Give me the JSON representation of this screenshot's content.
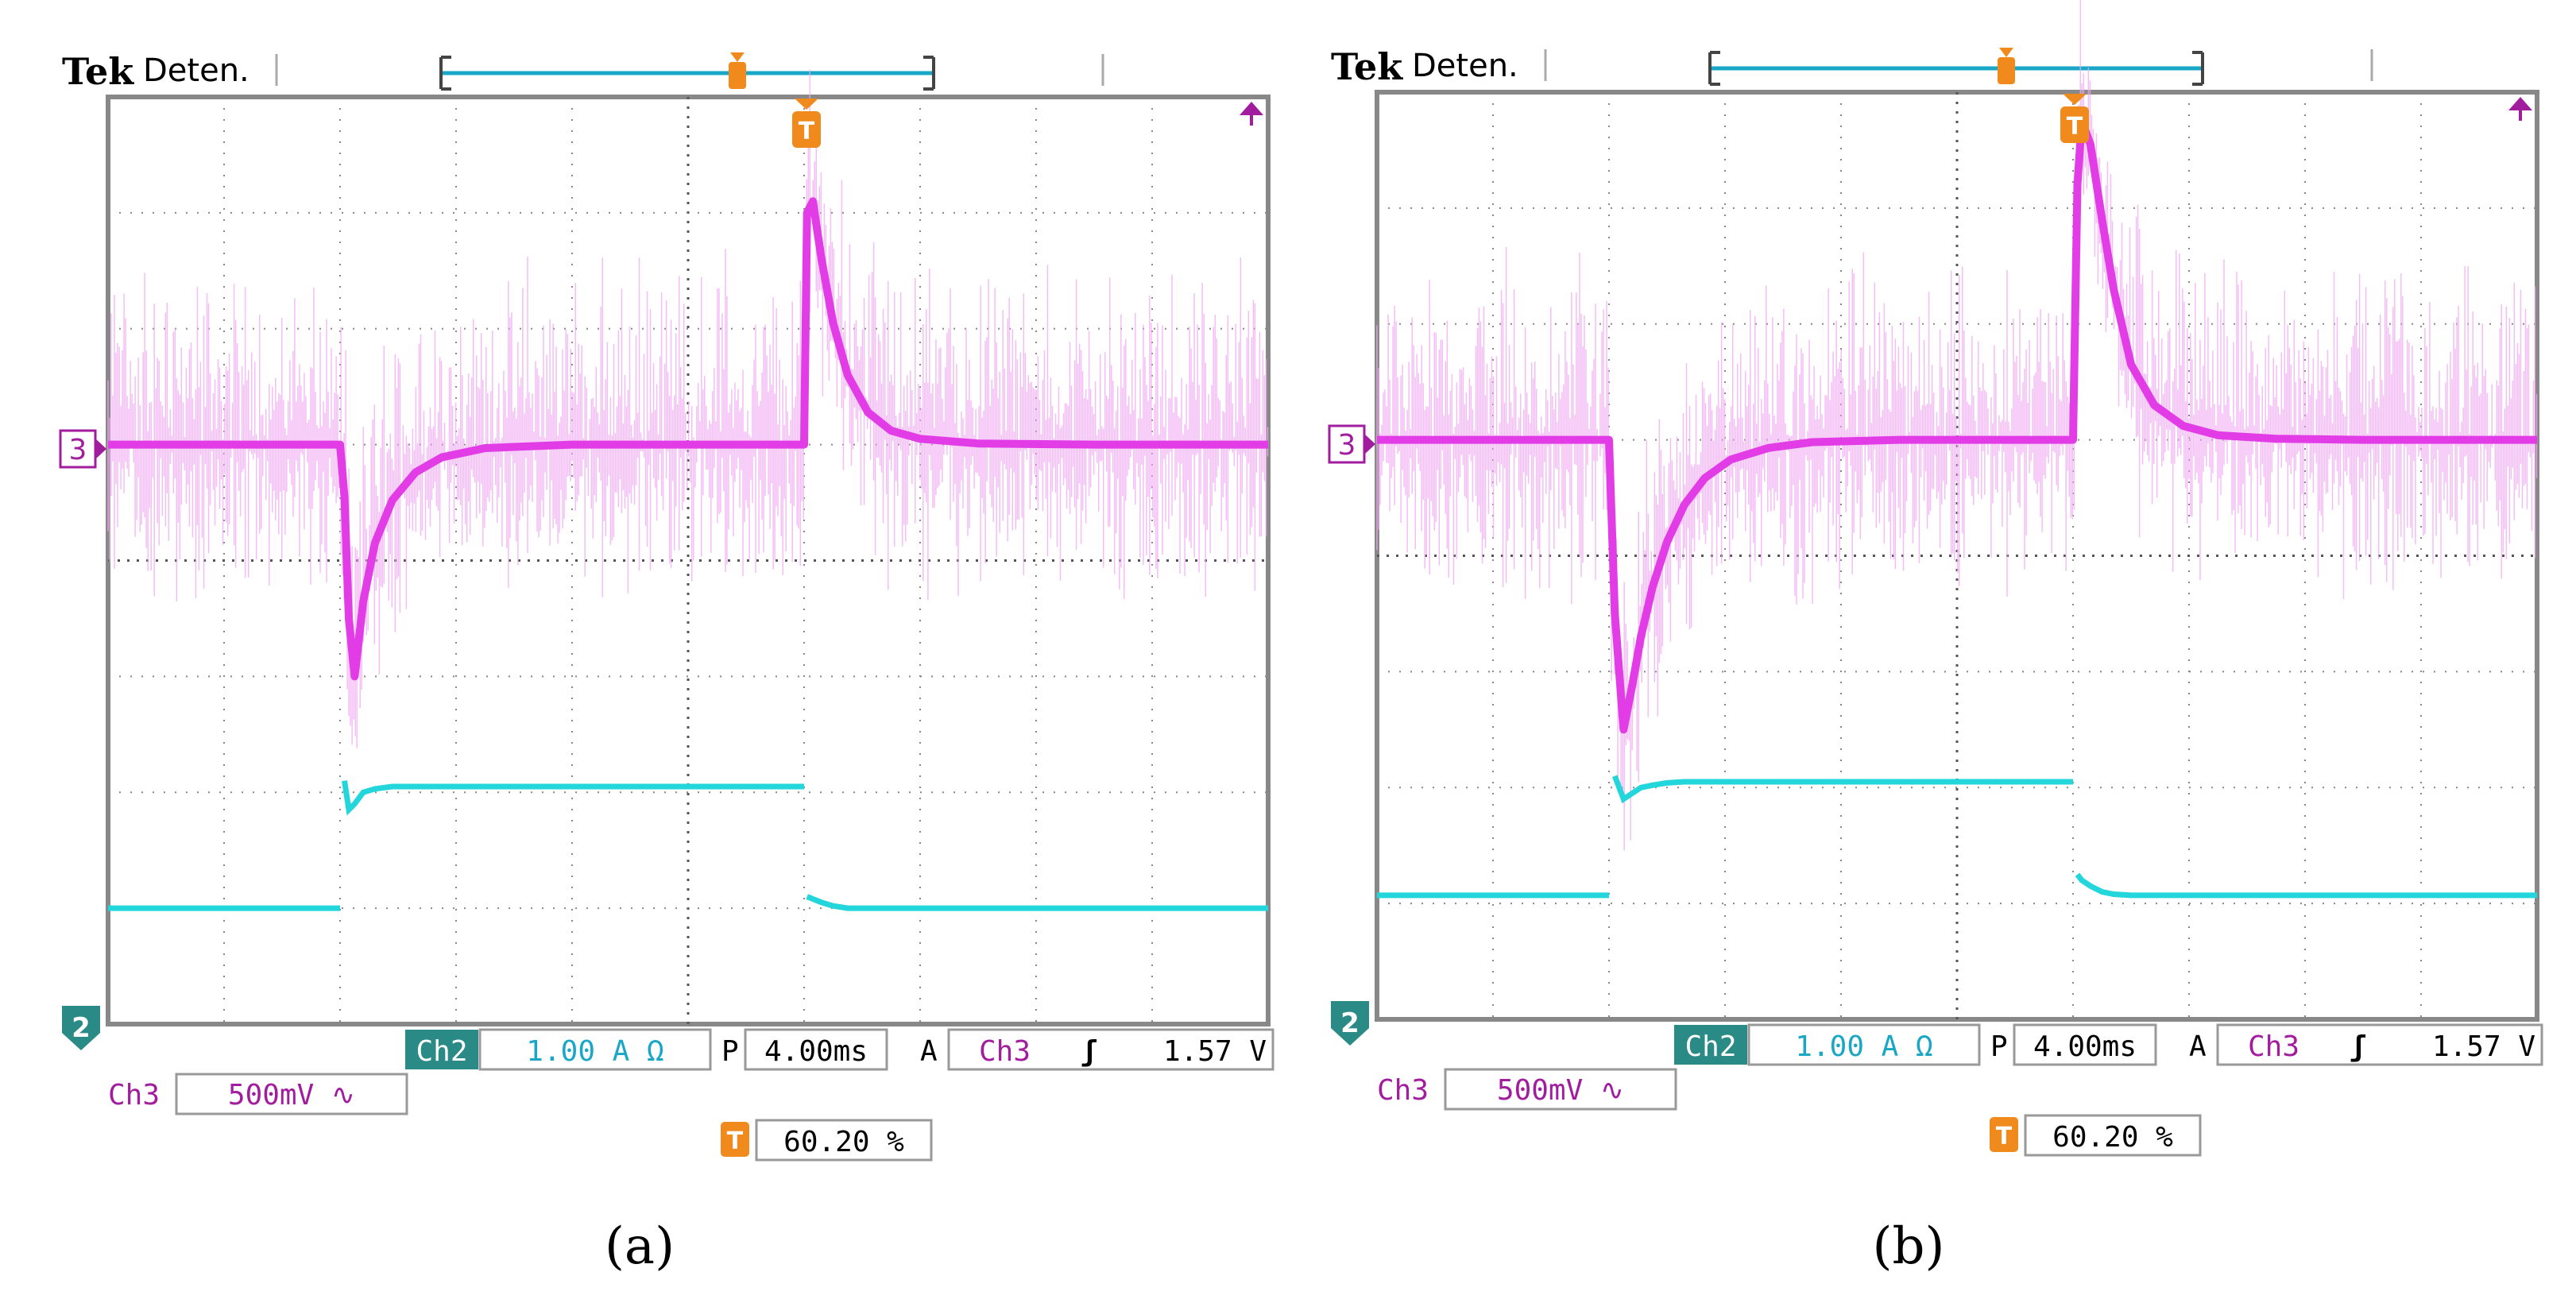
{
  "chart_data": [
    {
      "type": "line",
      "panel_label": "(a)",
      "header": {
        "brand": "Tek",
        "mode": "Deten."
      },
      "trigger_marker": "T",
      "x": [
        0,
        4,
        8,
        8.15,
        8.3,
        8.5,
        8.8,
        9.2,
        9.8,
        10.6,
        11.5,
        13,
        16,
        20,
        23,
        24,
        24.1,
        24.3,
        24.6,
        25,
        25.5,
        26.2,
        27,
        28,
        30,
        34,
        40
      ],
      "series": [
        {
          "name": "Ch3",
          "color": "#e23ce6",
          "values": [
            0,
            0,
            0,
            -0.45,
            -1.5,
            -2.0,
            -1.35,
            -0.85,
            -0.48,
            -0.24,
            -0.11,
            -0.03,
            0,
            0,
            0,
            0,
            2.0,
            2.1,
            1.6,
            1.05,
            0.6,
            0.28,
            0.12,
            0.05,
            0.01,
            0,
            0
          ]
        },
        {
          "name": "Ch2",
          "color": "#22d6dc",
          "values": [
            -4,
            -4,
            -4,
            -2.9,
            -3.15,
            -3.1,
            -3.0,
            -2.97,
            -2.95,
            -2.95,
            -2.95,
            -2.95,
            -2.95,
            -2.95,
            -2.95,
            -2.95,
            -3.9,
            -3.92,
            -3.95,
            -3.98,
            -4.0,
            -4.0,
            -4.0,
            -4.0,
            -4.0,
            -4.0,
            -4.0
          ]
        }
      ],
      "channel_markers": {
        "ch3": "3",
        "ch2": "2"
      },
      "readouts": {
        "ch2_label": "Ch2",
        "ch2_scale": "1.00 A Ω",
        "p_label": "P",
        "timebase": "4.00ms",
        "a_label": "A",
        "trig_source": "Ch3",
        "trig_slope": "ʃ",
        "trig_level": "1.57 V",
        "ch3_label": "Ch3",
        "ch3_scale": "500mV ∿",
        "trig_pos_icon": "T",
        "trig_pos": "60.20 %"
      },
      "xlim": [
        0,
        40
      ],
      "ylim": [
        -5,
        3
      ]
    },
    {
      "type": "line",
      "panel_label": "(b)",
      "header": {
        "brand": "Tek",
        "mode": "Deten."
      },
      "trigger_marker": "T",
      "x": [
        0,
        4,
        8,
        8.2,
        8.5,
        8.8,
        9.1,
        9.5,
        10,
        10.6,
        11.3,
        12.2,
        13.5,
        15,
        18,
        20,
        22,
        23,
        24,
        24.15,
        24.3,
        24.6,
        25,
        25.4,
        26,
        26.8,
        27.8,
        29,
        31,
        34,
        40
      ],
      "series": [
        {
          "name": "Ch3",
          "color": "#e23ce6",
          "values": [
            0,
            0,
            0,
            -1.5,
            -2.5,
            -2.12,
            -1.7,
            -1.27,
            -0.88,
            -0.56,
            -0.33,
            -0.17,
            -0.07,
            -0.02,
            0,
            0,
            0,
            0,
            0,
            2.2,
            2.75,
            2.55,
            1.9,
            1.3,
            0.65,
            0.3,
            0.12,
            0.04,
            0.01,
            0,
            0
          ]
        },
        {
          "name": "Ch2",
          "color": "#22d6dc",
          "values": [
            -3.93,
            -3.93,
            -3.93,
            -2.9,
            -3.1,
            -3.05,
            -3.0,
            -2.98,
            -2.96,
            -2.95,
            -2.95,
            -2.95,
            -2.95,
            -2.95,
            -2.95,
            -2.95,
            -2.95,
            -2.95,
            -2.95,
            -3.75,
            -3.8,
            -3.85,
            -3.9,
            -3.92,
            -3.93,
            -3.93,
            -3.93,
            -3.93,
            -3.93,
            -3.93,
            -3.93
          ]
        }
      ],
      "channel_markers": {
        "ch3": "3",
        "ch2": "2"
      },
      "readouts": {
        "ch2_label": "Ch2",
        "ch2_scale": "1.00 A Ω",
        "p_label": "P",
        "timebase": "4.00ms",
        "a_label": "A",
        "trig_source": "Ch3",
        "trig_slope": "ʃ",
        "trig_level": "1.57 V",
        "ch3_label": "Ch3",
        "ch3_scale": "500mV ∿",
        "trig_pos_icon": "T",
        "trig_pos": "60.20 %"
      },
      "xlim": [
        0,
        40
      ],
      "ylim": [
        -5,
        3
      ]
    }
  ]
}
